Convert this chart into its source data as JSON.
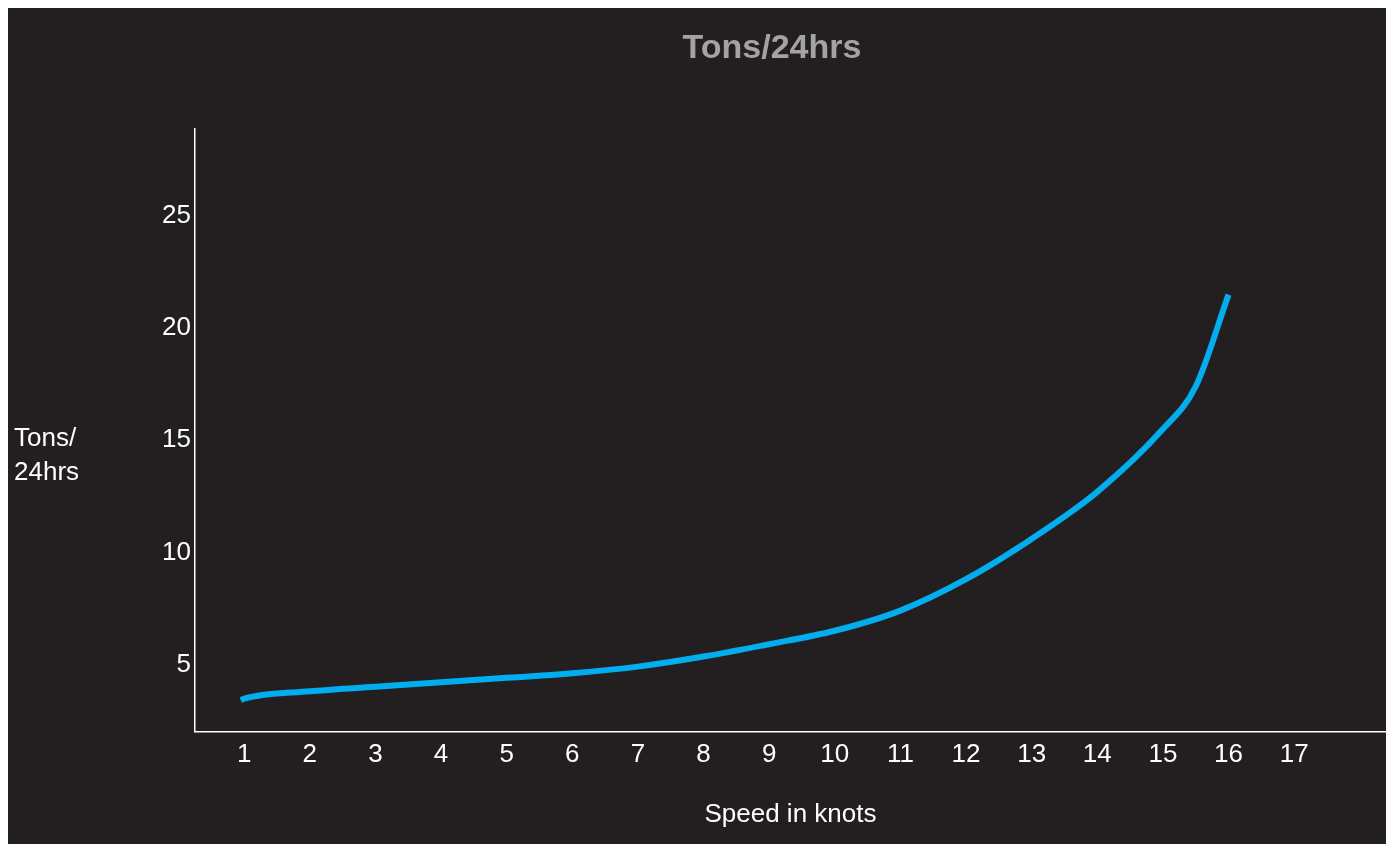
{
  "chart_data": {
    "type": "line",
    "title": "Tons/24hrs",
    "xlabel": "Speed in knots",
    "ylabel": "Tons/\n24hrs",
    "x": [
      0.95,
      1,
      2,
      3,
      4,
      5,
      6,
      7,
      8,
      9,
      10,
      11,
      12,
      13,
      14,
      15,
      15.5,
      16
    ],
    "series": [
      {
        "color": "#00aeef",
        "values": [
          3.4,
          3.47,
          3.8,
          4.0,
          4.2,
          4.4,
          4.6,
          4.9,
          5.35,
          5.9,
          6.5,
          7.4,
          8.8,
          10.6,
          12.7,
          15.5,
          17.4,
          21.5
        ]
      }
    ],
    "xlim": [
      0.25,
      18.4
    ],
    "xticks": [
      1,
      2,
      3,
      4,
      5,
      6,
      7,
      8,
      9,
      10,
      11,
      12,
      13,
      14,
      15,
      16,
      17
    ],
    "ylim": [
      2,
      28.9
    ],
    "yticks": [
      5,
      10,
      15,
      20,
      25
    ],
    "grid": false,
    "legend": false,
    "marker": "none",
    "line_style": "solid"
  }
}
